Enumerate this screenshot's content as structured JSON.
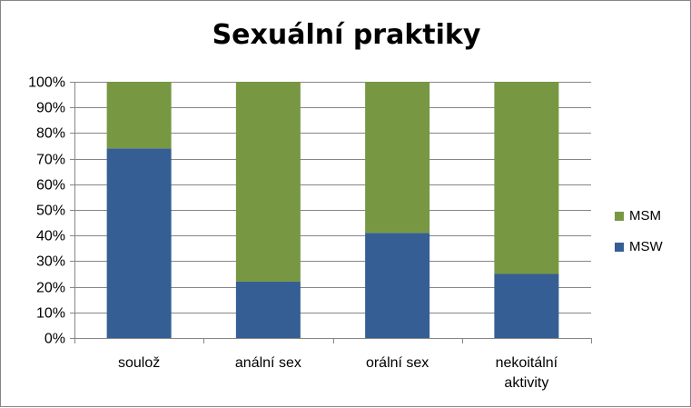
{
  "chart_data": {
    "type": "bar",
    "stacked": true,
    "title": "Sexuální praktiky",
    "categories": [
      "soulož",
      "anální sex",
      "orální sex",
      "nekoitální aktivity"
    ],
    "category_lines": [
      [
        "soulož"
      ],
      [
        "anální sex"
      ],
      [
        "orální sex"
      ],
      [
        "nekoitální",
        "aktivity"
      ]
    ],
    "series": [
      {
        "name": "MSW",
        "color": "#355E94",
        "values": [
          74,
          22,
          41,
          25
        ]
      },
      {
        "name": "MSM",
        "color": "#779743",
        "values": [
          26,
          78,
          59,
          75
        ]
      }
    ],
    "yticks": [
      "0%",
      "10%",
      "20%",
      "30%",
      "40%",
      "50%",
      "60%",
      "70%",
      "80%",
      "90%",
      "100%"
    ],
    "ylim": [
      0,
      100
    ],
    "grid": true,
    "legend": {
      "position": "right",
      "items": [
        {
          "label": "MSM",
          "color": "#779743"
        },
        {
          "label": "MSW",
          "color": "#355E94"
        }
      ]
    }
  }
}
